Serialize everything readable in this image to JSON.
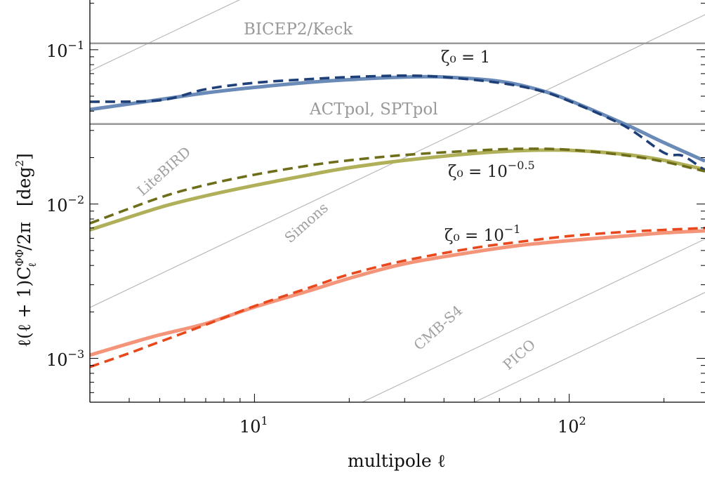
{
  "chart_data": {
    "type": "line",
    "xlabel": "multipole ℓ",
    "ylabel": "ℓ(ℓ + 1)CℓΦΦ/2π  [deg²]",
    "x_scale": "log",
    "y_scale": "log",
    "xlim": [
      3,
      270
    ],
    "ylim": [
      0.00052,
      0.21
    ],
    "x_ticks": [
      {
        "value": 10,
        "label": "10¹"
      },
      {
        "value": 100,
        "label": "10²"
      }
    ],
    "y_ticks": [
      {
        "value": 0.001,
        "label": "10⁻³"
      },
      {
        "value": 0.01,
        "label": "10⁻²"
      },
      {
        "value": 0.1,
        "label": "10⁻¹"
      }
    ],
    "grid": false,
    "series": [
      {
        "name": "ζ₀ = 1",
        "style": "solid",
        "color": "#6a8bb8",
        "x": [
          3,
          5,
          7,
          10,
          15,
          20,
          30,
          40,
          60,
          80,
          100,
          150,
          200,
          270
        ],
        "y": [
          0.041,
          0.0475,
          0.0525,
          0.057,
          0.0615,
          0.064,
          0.0665,
          0.0665,
          0.0625,
          0.055,
          0.047,
          0.033,
          0.025,
          0.019
        ]
      },
      {
        "name": "ζ₀ = 1",
        "style": "dashed",
        "color": "#1f3f78",
        "x": [
          3,
          5,
          7,
          10,
          15,
          20,
          30,
          40,
          60,
          80,
          100,
          150,
          200,
          230,
          270
        ],
        "y": [
          0.046,
          0.047,
          0.0555,
          0.061,
          0.0645,
          0.0665,
          0.068,
          0.0665,
          0.061,
          0.0545,
          0.0465,
          0.032,
          0.0215,
          0.0205,
          0.0165
        ]
      },
      {
        "name": "ζ₀ = 10^−0.5",
        "style": "solid",
        "color": "#b0b05a",
        "x": [
          3,
          5,
          7,
          10,
          15,
          20,
          30,
          50,
          70,
          100,
          150,
          200,
          270
        ],
        "y": [
          0.0068,
          0.0095,
          0.0113,
          0.0132,
          0.0155,
          0.0172,
          0.0192,
          0.0213,
          0.0222,
          0.0223,
          0.021,
          0.0192,
          0.0167
        ]
      },
      {
        "name": "ζ₀ = 10^−0.5",
        "style": "dashed",
        "color": "#6e6e1a",
        "x": [
          3,
          5,
          7,
          10,
          15,
          20,
          30,
          50,
          70,
          100,
          150,
          200,
          270
        ],
        "y": [
          0.0075,
          0.011,
          0.0133,
          0.0155,
          0.0178,
          0.0192,
          0.0208,
          0.0222,
          0.0228,
          0.0225,
          0.0207,
          0.0188,
          0.0163
        ]
      },
      {
        "name": "ζ₀ = 10^−1",
        "style": "solid",
        "color": "#f4957a",
        "x": [
          3,
          4,
          5,
          7,
          10,
          15,
          20,
          30,
          50,
          70,
          100,
          150,
          200,
          270
        ],
        "y": [
          0.00105,
          0.00125,
          0.00142,
          0.00168,
          0.00215,
          0.00275,
          0.0033,
          0.0041,
          0.0049,
          0.0054,
          0.0058,
          0.0062,
          0.0065,
          0.0067
        ]
      },
      {
        "name": "ζ₀ = 10^−1",
        "style": "dashed",
        "color": "#e8481c",
        "x": [
          3,
          4,
          5,
          7,
          10,
          15,
          20,
          30,
          50,
          70,
          100,
          150,
          200,
          270
        ],
        "y": [
          0.00088,
          0.00108,
          0.00128,
          0.00165,
          0.00218,
          0.00288,
          0.0035,
          0.0043,
          0.0052,
          0.0057,
          0.0062,
          0.0066,
          0.0068,
          0.007
        ]
      }
    ],
    "curve_labels": [
      {
        "text": "ζ₀ = 1",
        "x": 40,
        "y": 0.085
      },
      {
        "text": "ζ₀ = 10^−0.5",
        "x": 40,
        "y": 0.0135
      },
      {
        "text": "ζ₀ = 10^−1",
        "x": 40,
        "y": 0.0048
      }
    ],
    "experiment_limits": [
      {
        "name": "BICEP2/Keck",
        "y": 0.11,
        "label_x": 22
      },
      {
        "name": "ACTpol, SPTpol",
        "y": 0.033,
        "label_x": 37
      }
    ],
    "sensitivity_lines": [
      {
        "name": "LiteBIRD",
        "x_at_bottom": 0.0185
      },
      {
        "name": "Simons",
        "x_at_bottom": 0.7
      },
      {
        "name": "CMB-S4",
        "x_at_bottom": 22
      },
      {
        "name": "PICO",
        "x_at_bottom": 50
      }
    ]
  },
  "text": {
    "bicep": "BICEP2/Keck",
    "act": "ACTpol, SPTpol",
    "litebird": "LiteBIRD",
    "simons": "Simons",
    "cmbs4": "CMB-S4",
    "pico": "PICO",
    "zeta1": "ζ₀ = 1",
    "zeta05": "ζ₀ = 10",
    "zeta05_exp": "−0.5",
    "zeta01": "ζ₀ = 10",
    "zeta01_exp": "−1",
    "xlabel": "multipole ℓ",
    "ylabel_main": "ℓ(ℓ + 1)C",
    "ylabel_sub": "ℓ",
    "ylabel_sup": "ΦΦ",
    "ylabel_tail": "/2π",
    "ylabel_unit": "[deg",
    "ylabel_unit_sup": "2",
    "ylabel_unit_close": "]",
    "xtick_10_base": "10",
    "xtick_10_exp": "1",
    "xtick_100_base": "10",
    "xtick_100_exp": "2",
    "ytick_m1_base": "10",
    "ytick_m1_exp": "−1",
    "ytick_m2_base": "10",
    "ytick_m2_exp": "−2",
    "ytick_m3_base": "10",
    "ytick_m3_exp": "−3"
  }
}
